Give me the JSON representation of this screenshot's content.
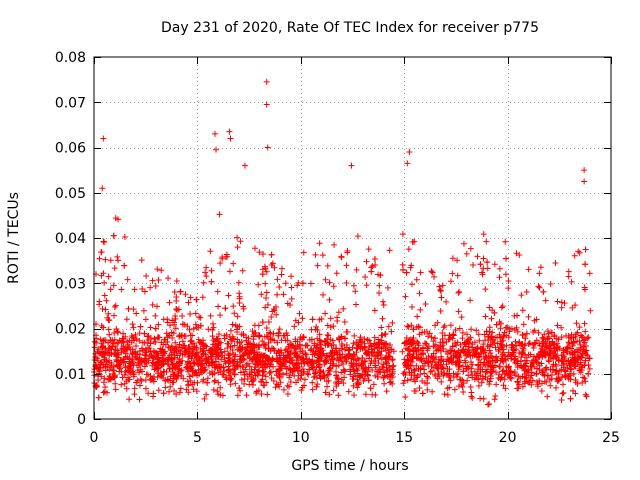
{
  "chart_data": {
    "type": "scatter",
    "title": "Day 231 of 2020, Rate Of TEC Index for receiver p775",
    "xlabel": "GPS time / hours",
    "ylabel": "ROTI / TECUs",
    "xlim": [
      0,
      25
    ],
    "ylim": [
      0,
      0.08
    ],
    "xticks": [
      "0",
      "5",
      "10",
      "15",
      "20",
      "25"
    ],
    "xtick_values": [
      0,
      5,
      10,
      15,
      20,
      25
    ],
    "yticks": [
      "0",
      "0.01",
      "0.02",
      "0.03",
      "0.04",
      "0.05",
      "0.06",
      "0.07",
      "0.08"
    ],
    "ytick_values": [
      0,
      0.01,
      0.02,
      0.03,
      0.04,
      0.05,
      0.06,
      0.07,
      0.08
    ],
    "grid": true,
    "marker": "+",
    "color": "#ff0000",
    "data_gaps_hours": [
      [
        14.5,
        14.9
      ]
    ],
    "outliers": [
      {
        "x": 0.45,
        "y": 0.062
      },
      {
        "x": 0.4,
        "y": 0.051
      },
      {
        "x": 5.85,
        "y": 0.063
      },
      {
        "x": 5.9,
        "y": 0.0595
      },
      {
        "x": 6.55,
        "y": 0.0635
      },
      {
        "x": 6.6,
        "y": 0.062
      },
      {
        "x": 7.3,
        "y": 0.056
      },
      {
        "x": 8.35,
        "y": 0.0745
      },
      {
        "x": 8.35,
        "y": 0.0695
      },
      {
        "x": 8.4,
        "y": 0.06
      },
      {
        "x": 12.45,
        "y": 0.056
      },
      {
        "x": 15.25,
        "y": 0.059
      },
      {
        "x": 15.15,
        "y": 0.0565
      },
      {
        "x": 23.7,
        "y": 0.055
      },
      {
        "x": 23.7,
        "y": 0.0525
      }
    ],
    "envelope": [
      {
        "x": 0.0,
        "low": 0.004,
        "high": 0.034
      },
      {
        "x": 1.0,
        "low": 0.004,
        "high": 0.046
      },
      {
        "x": 2.0,
        "low": 0.004,
        "high": 0.036
      },
      {
        "x": 3.0,
        "low": 0.005,
        "high": 0.034
      },
      {
        "x": 4.0,
        "low": 0.005,
        "high": 0.032
      },
      {
        "x": 5.0,
        "low": 0.004,
        "high": 0.028
      },
      {
        "x": 6.0,
        "low": 0.004,
        "high": 0.046
      },
      {
        "x": 7.0,
        "low": 0.005,
        "high": 0.04
      },
      {
        "x": 8.0,
        "low": 0.005,
        "high": 0.038
      },
      {
        "x": 9.0,
        "low": 0.005,
        "high": 0.036
      },
      {
        "x": 10.0,
        "low": 0.005,
        "high": 0.036
      },
      {
        "x": 11.0,
        "low": 0.005,
        "high": 0.043
      },
      {
        "x": 12.0,
        "low": 0.005,
        "high": 0.042
      },
      {
        "x": 13.0,
        "low": 0.004,
        "high": 0.04
      },
      {
        "x": 14.0,
        "low": 0.004,
        "high": 0.036
      },
      {
        "x": 15.0,
        "low": 0.004,
        "high": 0.045
      },
      {
        "x": 16.0,
        "low": 0.005,
        "high": 0.034
      },
      {
        "x": 17.0,
        "low": 0.005,
        "high": 0.034
      },
      {
        "x": 18.0,
        "low": 0.004,
        "high": 0.04
      },
      {
        "x": 19.0,
        "low": 0.003,
        "high": 0.043
      },
      {
        "x": 20.0,
        "low": 0.004,
        "high": 0.04
      },
      {
        "x": 21.0,
        "low": 0.004,
        "high": 0.034
      },
      {
        "x": 22.0,
        "low": 0.004,
        "high": 0.034
      },
      {
        "x": 23.0,
        "low": 0.004,
        "high": 0.038
      },
      {
        "x": 24.0,
        "low": 0.004,
        "high": 0.038
      }
    ],
    "typical_band": [
      0.007,
      0.02
    ]
  }
}
